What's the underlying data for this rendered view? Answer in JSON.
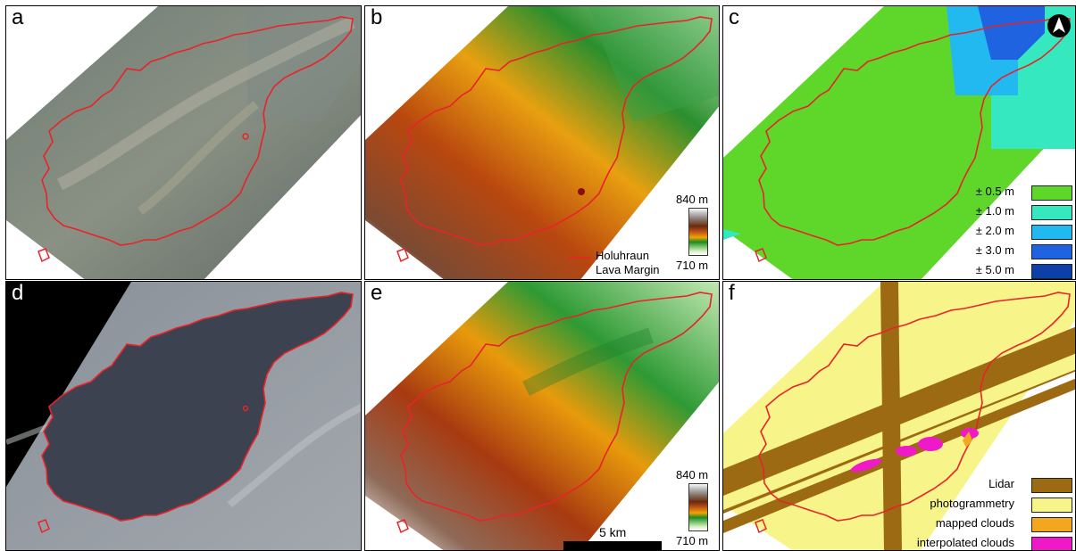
{
  "panels": {
    "a": {
      "label": "a"
    },
    "b": {
      "label": "b"
    },
    "c": {
      "label": "c"
    },
    "d": {
      "label": "d"
    },
    "e": {
      "label": "e"
    },
    "f": {
      "label": "f"
    }
  },
  "elevation_colorbar": {
    "max_label": "840 m",
    "min_label": "710 m",
    "colors": [
      "#fafafa",
      "#8a7b72",
      "#6a2a0c",
      "#c0521a",
      "#f0a400",
      "#1e8a24",
      "#d8f0c8"
    ]
  },
  "lava_margin_legend": {
    "line1": "Holuhraun",
    "line2": "Lava Margin",
    "color": "#e8232a"
  },
  "uncertainty_legend": [
    {
      "label": "± 0.5 m",
      "color": "#5fd62a"
    },
    {
      "label": "± 1.0 m",
      "color": "#35e8c0"
    },
    {
      "label": "± 2.0 m",
      "color": "#22b8f0"
    },
    {
      "label": "± 3.0 m",
      "color": "#1f63e0"
    },
    {
      "label": "± 5.0 m",
      "color": "#0c3fa8"
    }
  ],
  "source_legend": [
    {
      "label": "Lidar",
      "color": "#9c6a12"
    },
    {
      "label": "photogrammetry",
      "color": "#f7f58a"
    },
    {
      "label": "mapped clouds",
      "color": "#f2a71e"
    },
    {
      "label": "interpolated clouds",
      "color": "#f019c8"
    }
  ],
  "scalebar": {
    "label": "5 km"
  },
  "north_arrow": {
    "icon": "north-arrow-icon"
  }
}
